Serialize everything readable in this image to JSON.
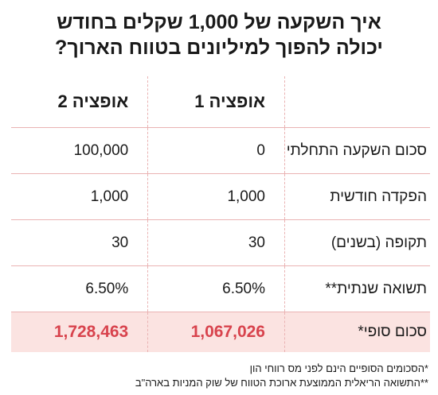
{
  "title": [
    "איך השקעה של 1,000 שקלים בחודש",
    "יכולה להפוך למיליונים בטווח הארוך?"
  ],
  "table": {
    "header": [
      "אופציה 1",
      "אופציה 2"
    ],
    "rows": [
      [
        "סכום השקעה התחלתי",
        "0",
        "100,000"
      ],
      [
        "הפקדה חודשית",
        "1,000",
        "1,000"
      ],
      [
        "תקופה (בשנים)",
        "30",
        "30"
      ],
      [
        "תשואה שנתית**",
        "6.50%",
        "6.50%"
      ],
      [
        "סכום סופי*",
        "1,067,026",
        "1,728,463"
      ]
    ]
  },
  "footnotes": [
    "*הסכומים הסופיים הינם לפני מס רווחי הון",
    "**התשואה הריאלית הממוצעת ארוכת הטווח של שוק המניות בארה\"ב"
  ]
}
